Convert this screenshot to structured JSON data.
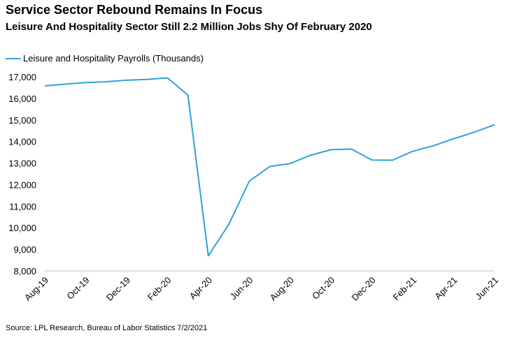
{
  "chart_data": {
    "type": "line",
    "title": "Service Sector Rebound Remains In Focus",
    "subtitle": "Leisure And Hospitality Sector Still 2.2 Million Jobs Shy Of February 2020",
    "legend": {
      "position": "top-left"
    },
    "series": [
      {
        "name": "Leisure and Hospitality Payrolls (Thousands)",
        "color": "#2ea3d6",
        "x": [
          "Aug-19",
          "Sep-19",
          "Oct-19",
          "Nov-19",
          "Dec-19",
          "Jan-20",
          "Feb-20",
          "Mar-20",
          "Apr-20",
          "May-20",
          "Jun-20",
          "Jul-20",
          "Aug-20",
          "Sep-20",
          "Oct-20",
          "Nov-20",
          "Dec-20",
          "Jan-21",
          "Feb-21",
          "Mar-21",
          "Apr-21",
          "May-21",
          "Jun-21"
        ],
        "values": [
          16580,
          16660,
          16730,
          16770,
          16840,
          16880,
          16950,
          16150,
          8700,
          10150,
          12160,
          12840,
          12980,
          13360,
          13620,
          13650,
          13140,
          13130,
          13550,
          13800,
          14130,
          14430,
          14780
        ]
      }
    ],
    "xticks": [
      "Aug-19",
      "Oct-19",
      "Dec-19",
      "Feb-20",
      "Apr-20",
      "Jun-20",
      "Aug-20",
      "Oct-20",
      "Dec-20",
      "Feb-21",
      "Apr-21",
      "Jun-21"
    ],
    "yticks": [
      "8,000",
      "9,000",
      "10,000",
      "11,000",
      "12,000",
      "13,000",
      "14,000",
      "15,000",
      "16,000",
      "17,000"
    ],
    "ylim": [
      8000,
      17000
    ],
    "grid": false,
    "source": "Source: LPL Research, Bureau of Labor Statistics 7/2/2021"
  }
}
